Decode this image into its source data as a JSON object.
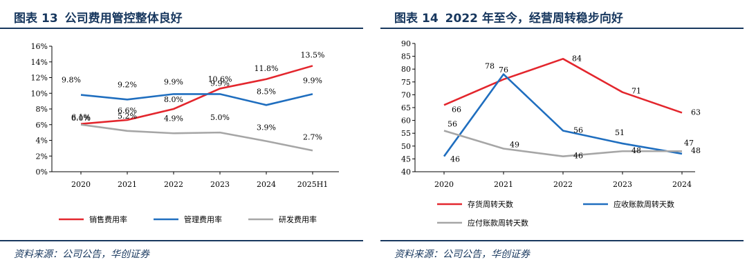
{
  "colors": {
    "title": "#17375e",
    "red": "#e3262d",
    "blue": "#1f6ebf",
    "gray": "#a6a6a6"
  },
  "left": {
    "title_label": "图表",
    "title_num": "13",
    "title_text": "公司费用管控整体良好",
    "source": "资料来源：公司公告，华创证券"
  },
  "right": {
    "title_label": "图表",
    "title_num": "14",
    "title_text": "2022 年至今，经营周转稳步向好",
    "source": "资料来源：公司公告，华创证券"
  },
  "chart_data": [
    {
      "type": "line",
      "title": "公司费用管控整体良好",
      "categories": [
        "2020",
        "2021",
        "2022",
        "2023",
        "2024",
        "2025H1"
      ],
      "ylim": [
        0,
        16
      ],
      "yticks": [
        0,
        2,
        4,
        6,
        8,
        10,
        12,
        14,
        16
      ],
      "ytick_labels": [
        "0%",
        "2%",
        "4%",
        "6%",
        "8%",
        "10%",
        "12%",
        "14%",
        "16%"
      ],
      "grid": false,
      "legend": "bottom",
      "series": [
        {
          "name": "销售费用率",
          "color": "#e3262d",
          "values": [
            6.1,
            6.6,
            8.0,
            10.6,
            11.8,
            13.5
          ],
          "labels": [
            "6.1%",
            "6.6%",
            "8.0%",
            "10.6%",
            "11.8%",
            "13.5%"
          ]
        },
        {
          "name": "管理费用率",
          "color": "#1f6ebf",
          "values": [
            9.8,
            9.2,
            9.9,
            9.9,
            8.5,
            9.9
          ],
          "labels": [
            "9.8%",
            "9.2%",
            "9.9%",
            "9.9%",
            "8.5%",
            "9.9%"
          ]
        },
        {
          "name": "研发费用率",
          "color": "#a6a6a6",
          "values": [
            6.0,
            5.2,
            4.9,
            5.0,
            3.9,
            2.7
          ],
          "labels": [
            "6.0%",
            "5.2%",
            "4.9%",
            "5.0%",
            "3.9%",
            "2.7%"
          ]
        }
      ]
    },
    {
      "type": "line",
      "title": "2022 年至今，经营周转稳步向好",
      "categories": [
        "2020",
        "2021",
        "2022",
        "2023",
        "2024"
      ],
      "ylim": [
        40,
        90
      ],
      "yticks": [
        40,
        45,
        50,
        55,
        60,
        65,
        70,
        75,
        80,
        85,
        90
      ],
      "ytick_labels": [
        "40",
        "45",
        "50",
        "55",
        "60",
        "65",
        "70",
        "75",
        "80",
        "85",
        "90"
      ],
      "grid": false,
      "legend": "bottom",
      "series": [
        {
          "name": "存货周转天数",
          "color": "#e3262d",
          "values": [
            66,
            76,
            84,
            71,
            63
          ],
          "labels": [
            "66",
            "76",
            "84",
            "71",
            "63"
          ]
        },
        {
          "name": "应收账款周转天数",
          "color": "#1f6ebf",
          "values": [
            46,
            78,
            56,
            51,
            47
          ],
          "labels": [
            "46",
            "78",
            "56",
            "51",
            "47"
          ]
        },
        {
          "name": "应付账款周转天数",
          "color": "#a6a6a6",
          "values": [
            56,
            49,
            46,
            48,
            48
          ],
          "labels": [
            "56",
            "49",
            "46",
            "48",
            "48"
          ]
        }
      ]
    }
  ]
}
